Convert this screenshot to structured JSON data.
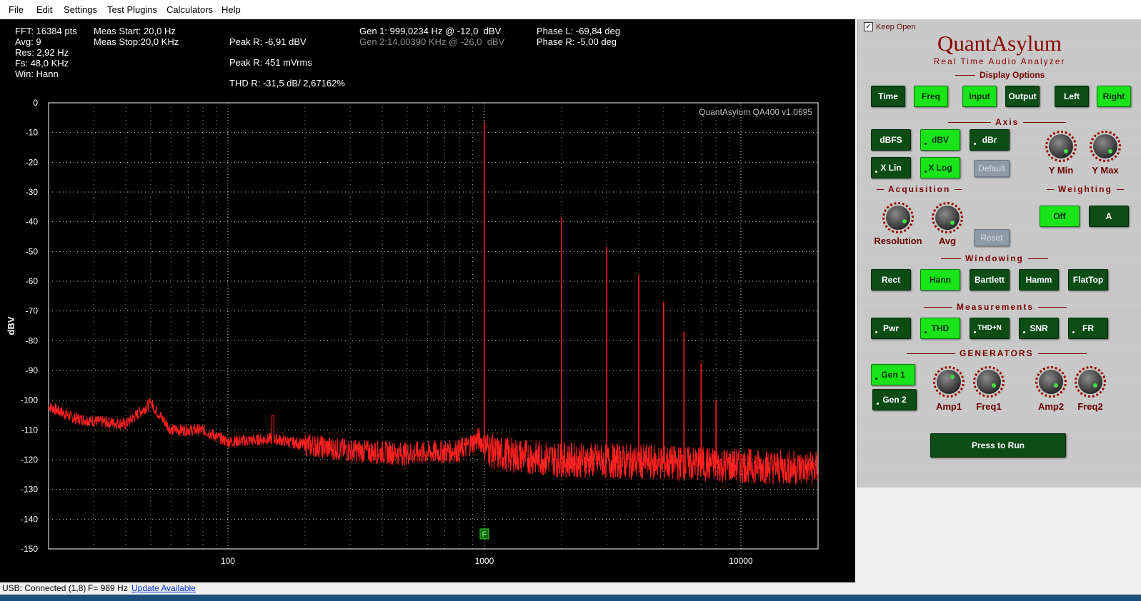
{
  "menu": [
    "File",
    "Edit",
    "Settings",
    "Test Plugins",
    "Calculators",
    "Help"
  ],
  "info": {
    "fft": "FFT: 16384 pts",
    "avg": "Avg: 9",
    "res": "Res: 2,92 Hz",
    "fs": "Fs: 48,0 KHz",
    "win": "Win: Hann",
    "meas_start": "Meas Start: 20,0 Hz",
    "meas_stop": "Meas Stop:20,0 KHz",
    "peak_r_dbv": "Peak R: -6,91 dBV",
    "peak_r_mv": "Peak R: 451 mVrms",
    "thd_r": "THD R: -31,5 dB/ 2,67162%",
    "gen1": "Gen 1: 999,0234 Hz @ -12,0  dBV",
    "gen2": "Gen 2:14,00390 KHz @ -26,0  dBV",
    "phase_l": "Phase L: -69,84 deg",
    "phase_r": "Phase R: -5,00 deg"
  },
  "chart_data": {
    "type": "line",
    "watermark": "QuantAsylum QA400 v1.0695",
    "ylabel": "dBV",
    "xlabel": "",
    "x_scale": "log",
    "xlim": [
      20,
      20000
    ],
    "ylim": [
      -150,
      0
    ],
    "y_ticks": [
      0,
      -10,
      -20,
      -30,
      -40,
      -50,
      -60,
      -70,
      -80,
      -90,
      -100,
      -110,
      -120,
      -130,
      -140,
      -150
    ],
    "x_tick_labels": [
      "100",
      "1000",
      "10000"
    ],
    "x_ticks": [
      100,
      1000,
      10000
    ],
    "grid": true,
    "marker_label": "F",
    "marker_x": 1000,
    "series": [
      {
        "color": "#ff2020",
        "noise_floor": [
          [
            20,
            -102
          ],
          [
            25,
            -106
          ],
          [
            30,
            -107
          ],
          [
            40,
            -108
          ],
          [
            50,
            -101
          ],
          [
            60,
            -110
          ],
          [
            80,
            -110
          ],
          [
            100,
            -114
          ],
          [
            150,
            -113
          ],
          [
            200,
            -115
          ],
          [
            300,
            -117
          ],
          [
            500,
            -118
          ],
          [
            800,
            -117
          ],
          [
            950,
            -113
          ],
          [
            1100,
            -118
          ],
          [
            1500,
            -119
          ],
          [
            2000,
            -120
          ],
          [
            5000,
            -121
          ],
          [
            10000,
            -122
          ],
          [
            20000,
            -123
          ]
        ],
        "peaks": [
          [
            999,
            -6.9
          ],
          [
            2000,
            -38.5
          ],
          [
            3000,
            -48.5
          ],
          [
            4000,
            -58
          ],
          [
            5000,
            -67
          ],
          [
            6000,
            -77
          ],
          [
            7000,
            -87.5
          ],
          [
            8000,
            -100
          ]
        ],
        "spurs": [
          [
            50,
            -101
          ],
          [
            150,
            -105
          ]
        ]
      }
    ]
  },
  "panel": {
    "keep_open": "Keep Open",
    "brand": "QuantAsylum",
    "tagline": "Real Time Audio Analyzer",
    "display_options_title": "Display Options",
    "display_buttons": [
      "Time",
      "Freq",
      "Input",
      "Output",
      "Left",
      "Right"
    ],
    "axis_title": "Axis",
    "axis_buttons": [
      "dBFS",
      "dBV",
      "dBr",
      "X Lin",
      "X Log",
      "Default"
    ],
    "ymin": "Y Min",
    "ymax": "Y Max",
    "acq_title": "Acquisition",
    "resolution": "Resolution",
    "avg": "Avg",
    "reset": "Reset",
    "weight_title": "Weighting",
    "weight_buttons": [
      "Off",
      "A"
    ],
    "window_title": "Windowing",
    "window_buttons": [
      "Rect",
      "Hann",
      "Bartlett",
      "Hamm",
      "FlatTop"
    ],
    "meas_title": "Measurements",
    "meas_buttons": [
      "Pwr",
      "THD",
      "THD+N",
      "SNR",
      "FR"
    ],
    "gen_title": "GENERATORS",
    "gen_buttons": [
      "Gen 1",
      "Gen 2"
    ],
    "knob_labels": [
      "Amp1",
      "Freq1",
      "Amp2",
      "Freq2"
    ],
    "run": "Press to Run"
  },
  "status": {
    "usb": "USB: Connected  (1,8)",
    "freq": "F= 989 Hz",
    "update": "Update Available"
  }
}
